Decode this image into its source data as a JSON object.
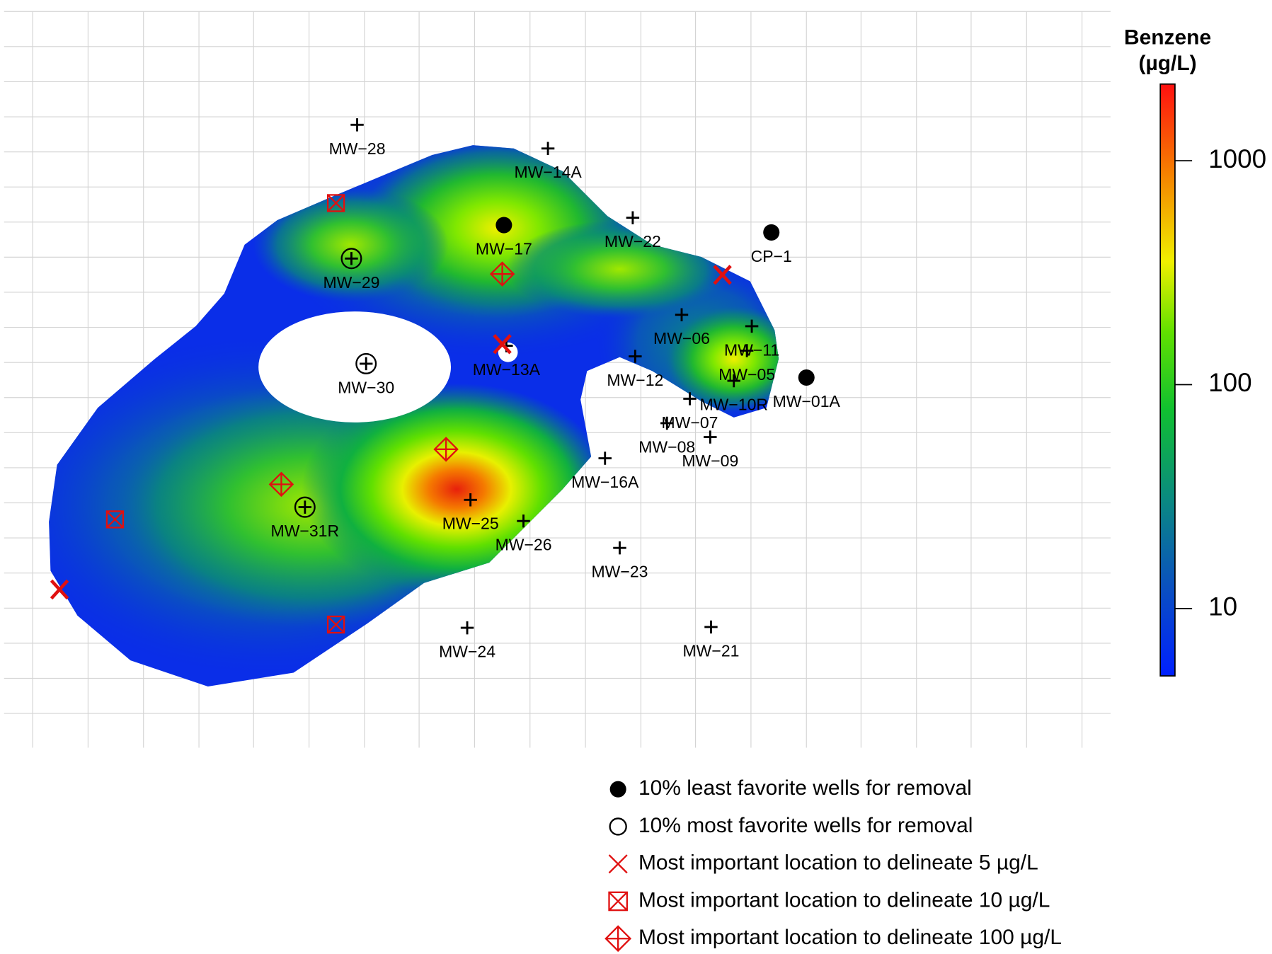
{
  "colorbar": {
    "title": [
      "Benzene",
      "(µg/L)"
    ],
    "ticks": [
      10,
      100,
      1000
    ],
    "lim": [
      5,
      2200
    ],
    "log": true
  },
  "wells": [
    "MW−28",
    "MW−14A",
    "MW−17",
    "MW−22",
    "CP−1",
    "MW−29",
    "MW−30",
    "MW−13A",
    "MW−06",
    "MW−11",
    "MW−12",
    "MW−05",
    "MW−10R",
    "MW−01A",
    "MW−07",
    "MW−08",
    "MW−09",
    "MW−16A",
    "MW−25",
    "MW−26",
    "MW−31R",
    "MW−23",
    "MW−24",
    "MW−21"
  ],
  "legend": [
    "10% least favorite wells for removal",
    "10% most favorite wells for removal",
    "Most important location to delineate 5 µg/L",
    "Most important location to delineate 10 µg/L",
    "Most important location to delineate 100 µg/L"
  ]
}
